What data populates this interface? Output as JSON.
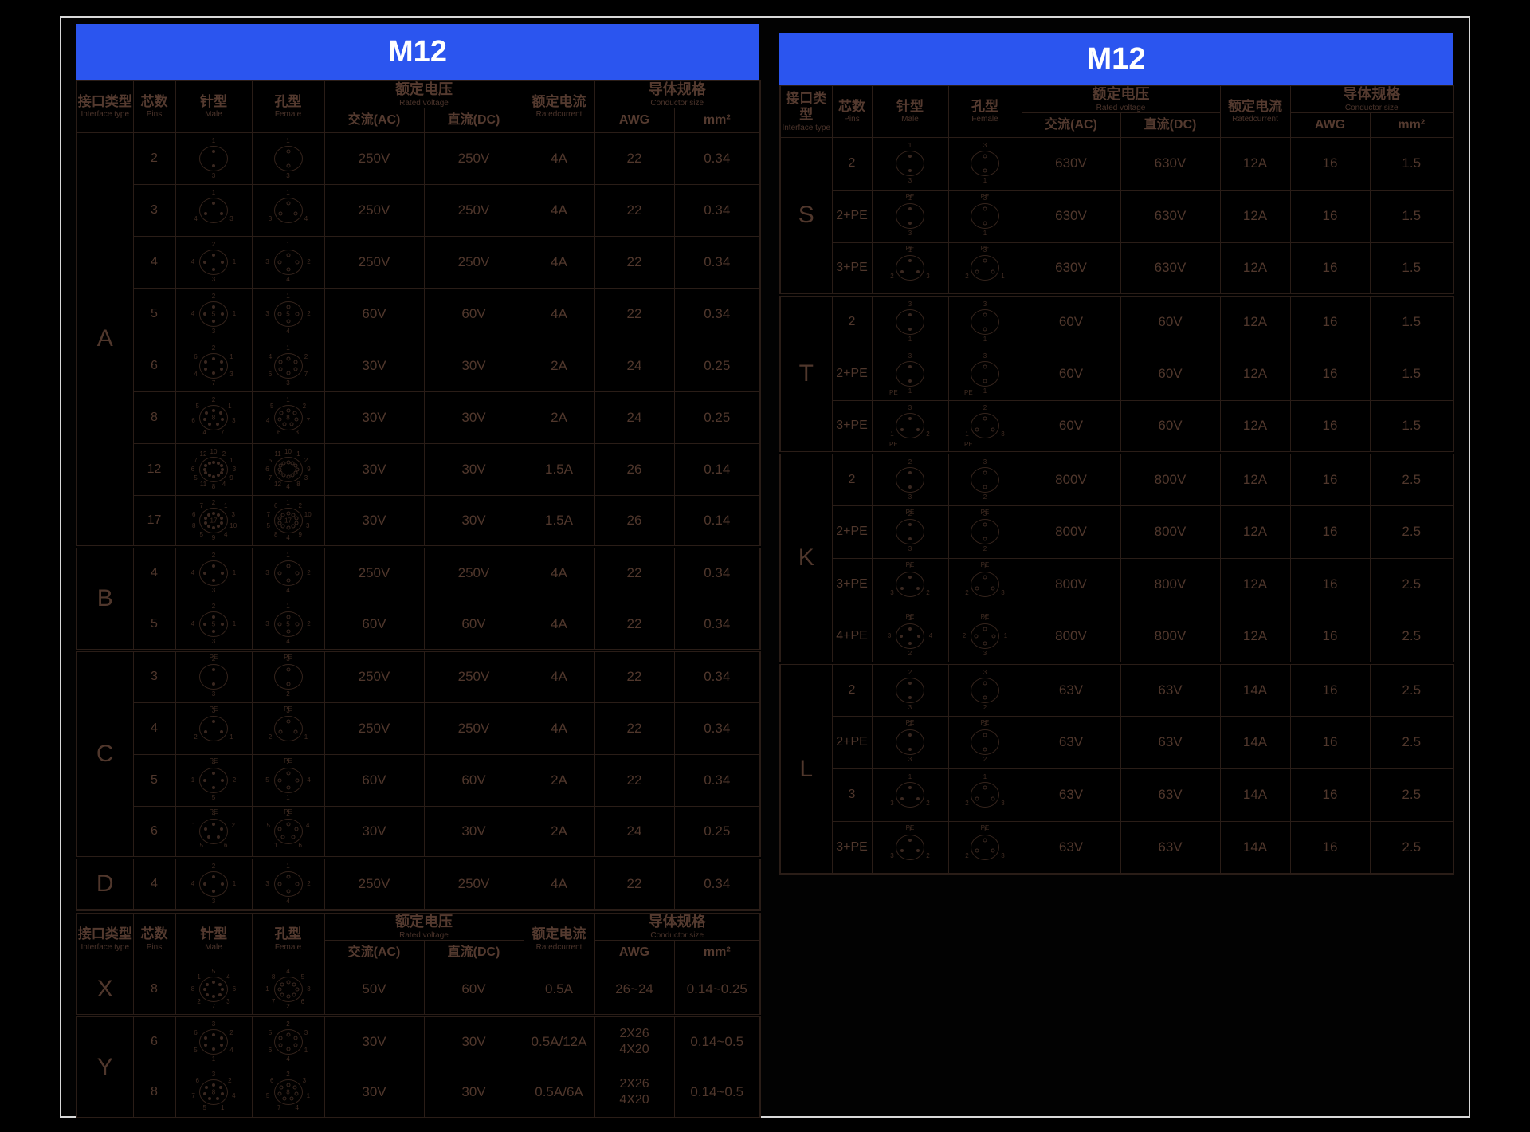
{
  "banner": {
    "title": "M12",
    "color": "#2b55ef",
    "text_color": "#ffffff"
  },
  "header": {
    "interface_cn": "接口类型",
    "interface_en": "Interface type",
    "pins_cn": "芯数",
    "pins_en": "Pins",
    "male_cn": "针型",
    "male_en": "Male",
    "female_cn": "孔型",
    "female_en": "Female",
    "voltage_cn": "额定电压",
    "voltage_en": "Rated voltage",
    "ac": "交流(AC)",
    "dc": "直流(DC)",
    "current_cn": "额定电流",
    "current_en": "Ratedcurrent",
    "conductor_cn": "导体规格",
    "conductor_en": "Conductor size",
    "awg": "AWG",
    "mm2": "mm²"
  },
  "left_table": {
    "sections": [
      {
        "type": "A",
        "rows": [
          {
            "pins": "2",
            "male": {
              "labels": [
                "1",
                "3"
              ]
            },
            "female": {
              "labels": [
                "1",
                "3"
              ]
            },
            "ac": "250V",
            "dc": "250V",
            "current": "4A",
            "awg": "22",
            "mm2": "0.34"
          },
          {
            "pins": "3",
            "male": {
              "labels": [
                "1",
                "3",
                "4"
              ]
            },
            "female": {
              "labels": [
                "1",
                "4",
                "3"
              ]
            },
            "ac": "250V",
            "dc": "250V",
            "current": "4A",
            "awg": "22",
            "mm2": "0.34"
          },
          {
            "pins": "4",
            "male": {
              "labels": [
                "2",
                "1",
                "3",
                "4"
              ]
            },
            "female": {
              "labels": [
                "1",
                "2",
                "4",
                "3"
              ]
            },
            "ac": "250V",
            "dc": "250V",
            "current": "4A",
            "awg": "22",
            "mm2": "0.34"
          },
          {
            "pins": "5",
            "male": {
              "labels": [
                "2",
                "1",
                "3",
                "4"
              ],
              "center": "5"
            },
            "female": {
              "labels": [
                "1",
                "2",
                "4",
                "3"
              ],
              "center": "5"
            },
            "ac": "60V",
            "dc": "60V",
            "current": "4A",
            "awg": "22",
            "mm2": "0.34"
          },
          {
            "pins": "6",
            "male": {
              "labels": [
                "2",
                "1",
                "3",
                "7",
                "4",
                "6"
              ]
            },
            "female": {
              "labels": [
                "1",
                "2",
                "7",
                "3",
                "6",
                "4"
              ]
            },
            "ac": "30V",
            "dc": "30V",
            "current": "2A",
            "awg": "24",
            "mm2": "0.25"
          },
          {
            "pins": "8",
            "male": {
              "labels": [
                "2",
                "1",
                "3",
                "7",
                "4",
                "6",
                "5"
              ],
              "center": "8"
            },
            "female": {
              "labels": [
                "1",
                "2",
                "7",
                "3",
                "6",
                "4",
                "5"
              ],
              "center": "8"
            },
            "ac": "30V",
            "dc": "30V",
            "current": "2A",
            "awg": "24",
            "mm2": "0.25"
          },
          {
            "pins": "12",
            "male": {
              "labels": [
                "10",
                "2",
                "1",
                "3",
                "9",
                "4",
                "8",
                "11",
                "5",
                "6",
                "7",
                "12"
              ]
            },
            "female": {
              "labels": [
                "10",
                "1",
                "2",
                "9",
                "3",
                "8",
                "4",
                "12",
                "7",
                "6",
                "5",
                "11"
              ]
            },
            "ac": "30V",
            "dc": "30V",
            "current": "1.5A",
            "awg": "26",
            "mm2": "0.14"
          },
          {
            "pins": "17",
            "male": {
              "labels": [
                "2",
                "1",
                "3",
                "10",
                "4",
                "9",
                "5",
                "8",
                "6",
                "7"
              ],
              "center": "17"
            },
            "female": {
              "labels": [
                "1",
                "2",
                "10",
                "3",
                "9",
                "4",
                "8",
                "5",
                "7",
                "6"
              ],
              "center": "17"
            },
            "ac": "30V",
            "dc": "30V",
            "current": "1.5A",
            "awg": "26",
            "mm2": "0.14"
          }
        ]
      },
      {
        "type": "B",
        "rows": [
          {
            "pins": "4",
            "male": {
              "labels": [
                "2",
                "1",
                "3",
                "4"
              ]
            },
            "female": {
              "labels": [
                "1",
                "2",
                "4",
                "3"
              ]
            },
            "ac": "250V",
            "dc": "250V",
            "current": "4A",
            "awg": "22",
            "mm2": "0.34"
          },
          {
            "pins": "5",
            "male": {
              "labels": [
                "2",
                "1",
                "3",
                "4"
              ],
              "center": "5"
            },
            "female": {
              "labels": [
                "1",
                "2",
                "4",
                "3"
              ],
              "center": "5"
            },
            "ac": "60V",
            "dc": "60V",
            "current": "4A",
            "awg": "22",
            "mm2": "0.34"
          }
        ]
      },
      {
        "type": "C",
        "rows": [
          {
            "pins": "3",
            "male": {
              "labels": [
                "2",
                "3"
              ],
              "pe": "top"
            },
            "female": {
              "labels": [
                "3",
                "2"
              ],
              "pe": "top"
            },
            "ac": "250V",
            "dc": "250V",
            "current": "4A",
            "awg": "22",
            "mm2": "0.34"
          },
          {
            "pins": "4",
            "male": {
              "labels": [
                "3",
                "1",
                "2"
              ],
              "pe": "top"
            },
            "female": {
              "labels": [
                "3",
                "1",
                "2"
              ],
              "pe": "top"
            },
            "ac": "250V",
            "dc": "250V",
            "current": "4A",
            "awg": "22",
            "mm2": "0.34"
          },
          {
            "pins": "5",
            "male": {
              "labels": [
                "4",
                "2",
                "5",
                "1"
              ],
              "pe": "top"
            },
            "female": {
              "labels": [
                "2",
                "4",
                "1",
                "5"
              ],
              "pe": "top"
            },
            "ac": "60V",
            "dc": "60V",
            "current": "2A",
            "awg": "22",
            "mm2": "0.34"
          },
          {
            "pins": "6",
            "male": {
              "labels": [
                "4",
                "2",
                "6",
                "5",
                "1"
              ],
              "pe": "top"
            },
            "female": {
              "labels": [
                "2",
                "4",
                "6",
                "1",
                "5"
              ],
              "pe": "top"
            },
            "ac": "30V",
            "dc": "30V",
            "current": "2A",
            "awg": "24",
            "mm2": "0.25"
          }
        ]
      },
      {
        "type": "D",
        "rows": [
          {
            "pins": "4",
            "male": {
              "labels": [
                "2",
                "1",
                "3",
                "4"
              ]
            },
            "female": {
              "labels": [
                "1",
                "2",
                "4",
                "3"
              ]
            },
            "ac": "250V",
            "dc": "250V",
            "current": "4A",
            "awg": "22",
            "mm2": "0.34"
          }
        ]
      }
    ]
  },
  "left_table_bottom": {
    "sections": [
      {
        "type": "X",
        "rows": [
          {
            "pins": "8",
            "male": {
              "labels": [
                "5",
                "4",
                "6",
                "3",
                "7",
                "2",
                "8",
                "1"
              ]
            },
            "female": {
              "labels": [
                "4",
                "5",
                "3",
                "6",
                "2",
                "7",
                "1",
                "8"
              ]
            },
            "ac": "50V",
            "dc": "60V",
            "current": "0.5A",
            "awg": "26~24",
            "mm2": "0.14~0.25"
          }
        ]
      },
      {
        "type": "Y",
        "rows": [
          {
            "pins": "6",
            "male": {
              "labels": [
                "3",
                "2",
                "4",
                "1",
                "5",
                "6"
              ]
            },
            "female": {
              "labels": [
                "2",
                "3",
                "1",
                "4",
                "6",
                "5"
              ]
            },
            "ac": "30V",
            "dc": "30V",
            "current": "0.5A/12A",
            "awg": [
              "2X26",
              "4X20"
            ],
            "mm2": "0.14~0.5"
          },
          {
            "pins": "8",
            "male": {
              "labels": [
                "3",
                "2",
                "4",
                "1",
                "5",
                "7",
                "6"
              ],
              "center": "8"
            },
            "female": {
              "labels": [
                "2",
                "3",
                "1",
                "4",
                "7",
                "5",
                "6"
              ],
              "center": "8"
            },
            "ac": "30V",
            "dc": "30V",
            "current": "0.5A/6A",
            "awg": [
              "2X26",
              "4X20"
            ],
            "mm2": "0.14~0.5"
          }
        ]
      }
    ]
  },
  "right_table": {
    "sections": [
      {
        "type": "S",
        "rows": [
          {
            "pins": "2",
            "male": {
              "labels": [
                "1",
                "3"
              ]
            },
            "female": {
              "labels": [
                "3",
                "1"
              ]
            },
            "ac": "630V",
            "dc": "630V",
            "current": "12A",
            "awg": "16",
            "mm2": "1.5"
          },
          {
            "pins": "2+PE",
            "male": {
              "labels": [
                "1",
                "3"
              ],
              "pe": "top"
            },
            "female": {
              "labels": [
                "3",
                "1"
              ],
              "pe": "top"
            },
            "ac": "630V",
            "dc": "630V",
            "current": "12A",
            "awg": "16",
            "mm2": "1.5"
          },
          {
            "pins": "3+PE",
            "male": {
              "labels": [
                "1",
                "3",
                "2"
              ],
              "pe": "top"
            },
            "female": {
              "labels": [
                "3",
                "1",
                "2"
              ],
              "pe": "top"
            },
            "ac": "630V",
            "dc": "630V",
            "current": "12A",
            "awg": "16",
            "mm2": "1.5"
          }
        ]
      },
      {
        "type": "T",
        "rows": [
          {
            "pins": "2",
            "male": {
              "labels": [
                "3",
                "1"
              ]
            },
            "female": {
              "labels": [
                "3",
                "1"
              ]
            },
            "ac": "60V",
            "dc": "60V",
            "current": "12A",
            "awg": "16",
            "mm2": "1.5"
          },
          {
            "pins": "2+PE",
            "male": {
              "labels": [
                "3",
                "1"
              ],
              "pe": "bottom"
            },
            "female": {
              "labels": [
                "3",
                "1"
              ],
              "pe": "bottom"
            },
            "ac": "60V",
            "dc": "60V",
            "current": "12A",
            "awg": "16",
            "mm2": "1.5"
          },
          {
            "pins": "3+PE",
            "male": {
              "labels": [
                "3",
                "2",
                "1"
              ],
              "pe": "bottom"
            },
            "female": {
              "labels": [
                "2",
                "3",
                "1"
              ],
              "pe": "bottom"
            },
            "ac": "60V",
            "dc": "60V",
            "current": "12A",
            "awg": "16",
            "mm2": "1.5"
          }
        ]
      },
      {
        "type": "K",
        "rows": [
          {
            "pins": "2",
            "male": {
              "labels": [
                "2",
                "3"
              ]
            },
            "female": {
              "labels": [
                "3",
                "2"
              ]
            },
            "ac": "800V",
            "dc": "800V",
            "current": "12A",
            "awg": "16",
            "mm2": "2.5"
          },
          {
            "pins": "2+PE",
            "male": {
              "labels": [
                "2",
                "3"
              ],
              "pe": "top"
            },
            "female": {
              "labels": [
                "3",
                "2"
              ],
              "pe": "top"
            },
            "ac": "800V",
            "dc": "800V",
            "current": "12A",
            "awg": "16",
            "mm2": "2.5"
          },
          {
            "pins": "3+PE",
            "male": {
              "labels": [
                "1",
                "2",
                "3"
              ],
              "pe": "top"
            },
            "female": {
              "labels": [
                "1",
                "3",
                "2"
              ],
              "pe": "top"
            },
            "ac": "800V",
            "dc": "800V",
            "current": "12A",
            "awg": "16",
            "mm2": "2.5"
          },
          {
            "pins": "4+PE",
            "male": {
              "labels": [
                "1",
                "4",
                "2",
                "3"
              ],
              "pe": "top"
            },
            "female": {
              "labels": [
                "4",
                "1",
                "3",
                "2"
              ],
              "pe": "top"
            },
            "ac": "800V",
            "dc": "800V",
            "current": "12A",
            "awg": "16",
            "mm2": "2.5"
          }
        ]
      },
      {
        "type": "L",
        "rows": [
          {
            "pins": "2",
            "male": {
              "labels": [
                "2",
                "3"
              ]
            },
            "female": {
              "labels": [
                "3",
                "2"
              ]
            },
            "ac": "63V",
            "dc": "63V",
            "current": "14A",
            "awg": "16",
            "mm2": "2.5"
          },
          {
            "pins": "2+PE",
            "male": {
              "labels": [
                "2",
                "3"
              ],
              "pe": "top"
            },
            "female": {
              "labels": [
                "3",
                "2"
              ],
              "pe": "top"
            },
            "ac": "63V",
            "dc": "63V",
            "current": "14A",
            "awg": "16",
            "mm2": "2.5"
          },
          {
            "pins": "3",
            "male": {
              "labels": [
                "1",
                "2",
                "3"
              ]
            },
            "female": {
              "labels": [
                "1",
                "3",
                "2"
              ]
            },
            "ac": "63V",
            "dc": "63V",
            "current": "14A",
            "awg": "16",
            "mm2": "2.5"
          },
          {
            "pins": "3+PE",
            "male": {
              "labels": [
                "1",
                "2",
                "3"
              ],
              "pe": "top"
            },
            "female": {
              "labels": [
                "1",
                "3",
                "2"
              ],
              "pe": "top"
            },
            "ac": "63V",
            "dc": "63V",
            "current": "14A",
            "awg": "16",
            "mm2": "2.5"
          }
        ]
      }
    ]
  }
}
